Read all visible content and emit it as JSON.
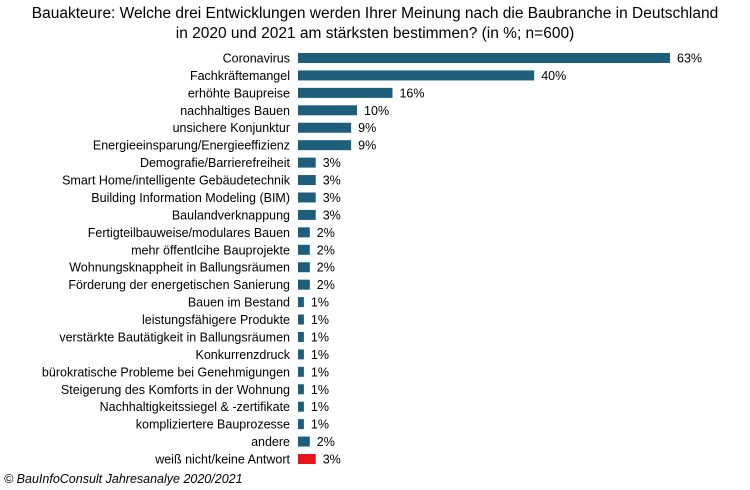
{
  "chart_data": {
    "type": "bar",
    "orientation": "horizontal",
    "title": "Bauakteure: Welche drei Entwicklungen  werden Ihrer Meinung nach die Baubranche in Deutschland in 2020 und 2021 am stärksten bestimmen? (in %; n=600)",
    "title_lines": [
      "Bauakteure: Welche drei Entwicklungen  werden Ihrer Meinung nach die Baubranche in Deutschland",
      "in 2020 und 2021 am stärksten bestimmen? (in %; n=600)"
    ],
    "xlabel": "",
    "ylabel": "",
    "xlim": [
      0,
      63
    ],
    "unit": "%",
    "categories": [
      "Coronavirus",
      "Fachkräftemangel",
      "erhöhte Baupreise",
      "nachhaltiges Bauen",
      "unsichere Konjunktur",
      "Energieeinsparung/Energieeffizienz",
      "Demografie/Barrierefreiheit",
      "Smart Home/intelligente Gebäudetechnik",
      "Building Information Modeling (BIM)",
      "Baulandverknappung",
      "Fertigteilbauweise/modulares Bauen",
      "mehr öffentlcihe Bauprojekte",
      "Wohnungsknappheit in Ballungsräumen",
      "Förderung der energetischen Sanierung",
      "Bauen im Bestand",
      "leistungsfähigere Produkte",
      "verstärkte Bautätigkeit in Ballungsräumen",
      "Konkurrenzdruck",
      "bürokratische Probleme bei Genehmigungen",
      "Steigerung des Komforts in der Wohnung",
      "Nachhaltigkeitssiegel & -zertifikate",
      "kompliziertere Bauprozesse",
      "andere",
      "weiß nicht/keine Antwort"
    ],
    "values": [
      63,
      40,
      16,
      10,
      9,
      9,
      3,
      3,
      3,
      3,
      2,
      2,
      2,
      2,
      1,
      1,
      1,
      1,
      1,
      1,
      1,
      1,
      2,
      3
    ],
    "labels": [
      "63%",
      "40%",
      "16%",
      "10%",
      "9%",
      "9%",
      "3%",
      "3%",
      "3%",
      "3%",
      "2%",
      "2%",
      "2%",
      "2%",
      "1%",
      "1%",
      "1%",
      "1%",
      "1%",
      "1%",
      "1%",
      "1%",
      "2%",
      "3%"
    ],
    "colors": {
      "default": "#1d5f7b",
      "highlight": "#e8141b"
    },
    "highlight_index": 23
  },
  "source": "© BauInfoConsult Jahresanalye 2020/2021"
}
